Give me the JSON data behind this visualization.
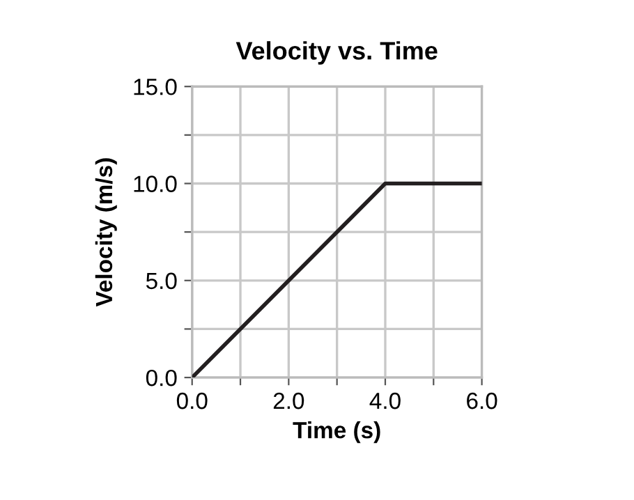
{
  "chart_data": {
    "type": "line",
    "title": "Velocity vs. Time",
    "xlabel": "Time (s)",
    "ylabel": "Velocity (m/s)",
    "x": [
      0,
      4,
      6
    ],
    "series": [
      {
        "color": "#231f20",
        "values": [
          0,
          10,
          10
        ]
      }
    ],
    "xlim": [
      0,
      6
    ],
    "ylim": [
      0,
      15
    ],
    "xticks": [
      {
        "value": 0,
        "label": "0.0"
      },
      {
        "value": 1,
        "label": null
      },
      {
        "value": 2,
        "label": "2.0"
      },
      {
        "value": 3,
        "label": null
      },
      {
        "value": 4,
        "label": "4.0"
      },
      {
        "value": 5,
        "label": null
      },
      {
        "value": 6,
        "label": "6.0"
      }
    ],
    "yticks": [
      {
        "value": 0,
        "label": "0.0"
      },
      {
        "value": 2.5,
        "label": null
      },
      {
        "value": 5,
        "label": "5.0"
      },
      {
        "value": 7.5,
        "label": null
      },
      {
        "value": 10,
        "label": "10.0"
      },
      {
        "value": 12.5,
        "label": null
      },
      {
        "value": 15,
        "label": "15.0"
      }
    ],
    "grid": true,
    "marker": "none",
    "line_style": "solid"
  }
}
